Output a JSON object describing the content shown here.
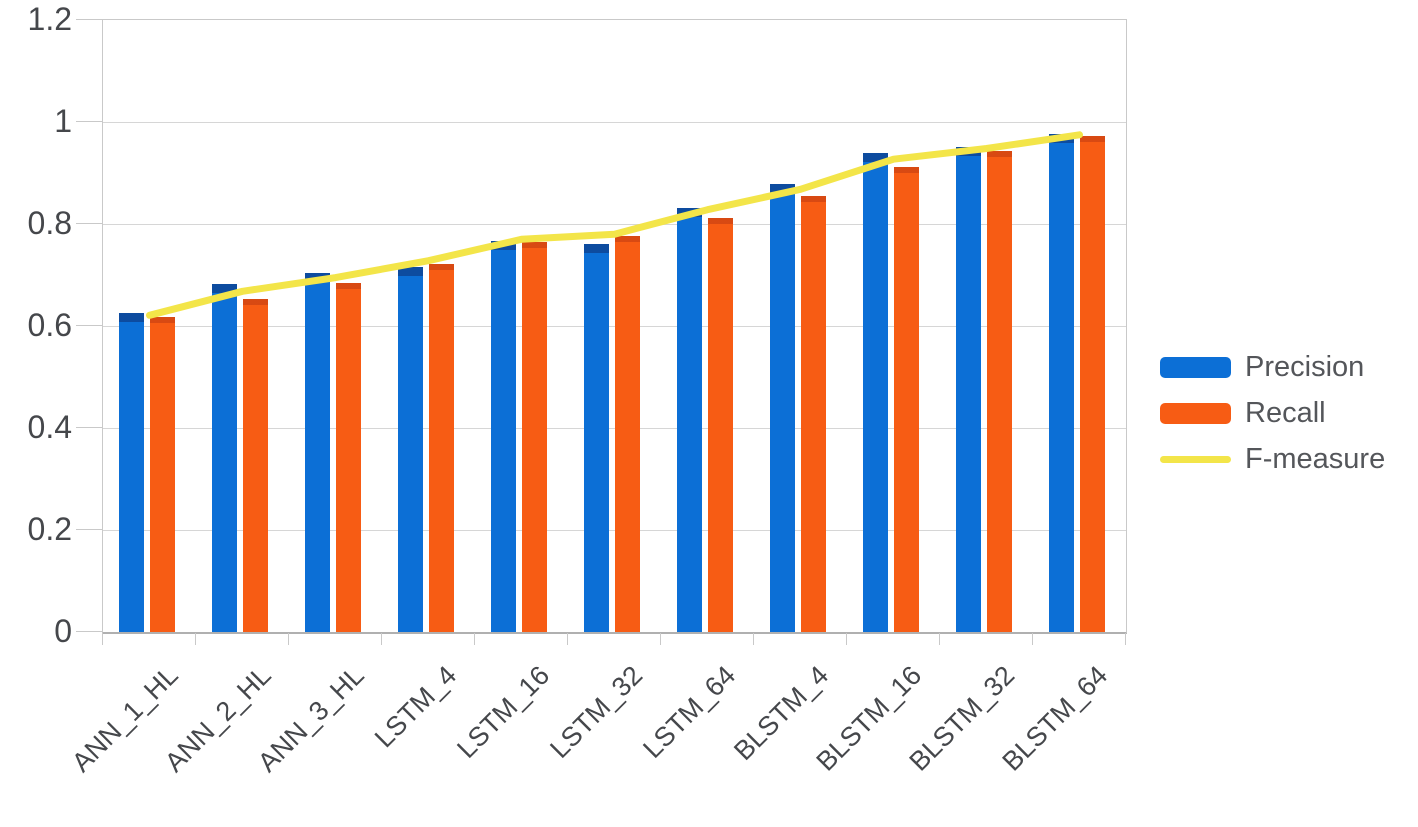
{
  "chart_data": {
    "type": "bar",
    "subtype": "grouped-bars-with-line-overlay",
    "title": "",
    "xlabel": "",
    "ylabel": "",
    "categories": [
      "ANN_1_HL",
      "ANN_2_HL",
      "ANN_3_HL",
      "LSTM_4",
      "LSTM_16",
      "LSTM_32",
      "LSTM_64",
      "BLSTM_4",
      "BLSTM_16",
      "BLSTM_32",
      "BLSTM_64"
    ],
    "series": [
      {
        "name": "Precision",
        "kind": "bar",
        "color": "#0c6fd6",
        "values": [
          0.625,
          0.682,
          0.703,
          0.715,
          0.766,
          0.761,
          0.832,
          0.878,
          0.94,
          0.95,
          0.977
        ]
      },
      {
        "name": "Recall",
        "kind": "bar",
        "color": "#f75c14",
        "values": [
          0.617,
          0.652,
          0.685,
          0.721,
          0.765,
          0.776,
          0.812,
          0.855,
          0.912,
          0.943,
          0.973
        ]
      },
      {
        "name": "F-measure",
        "kind": "line",
        "color": "#f3e549",
        "values": [
          0.621,
          0.668,
          0.695,
          0.728,
          0.77,
          0.78,
          0.828,
          0.868,
          0.927,
          0.948,
          0.975
        ]
      }
    ],
    "ylim": [
      0,
      1.2
    ],
    "yticks": [
      0,
      0.2,
      0.4,
      0.6,
      0.8,
      1,
      1.2
    ],
    "ytick_labels": [
      "0",
      "0.2",
      "0.4",
      "0.6",
      "0.8",
      "1",
      "1.2"
    ],
    "grid": true,
    "legend_position": "right",
    "colors": {
      "background": "#ffffff",
      "gridline": "#d6d6d6",
      "axis": "#b0b0b0",
      "tick_text": "#45474b",
      "legend_text": "#54565a"
    }
  }
}
